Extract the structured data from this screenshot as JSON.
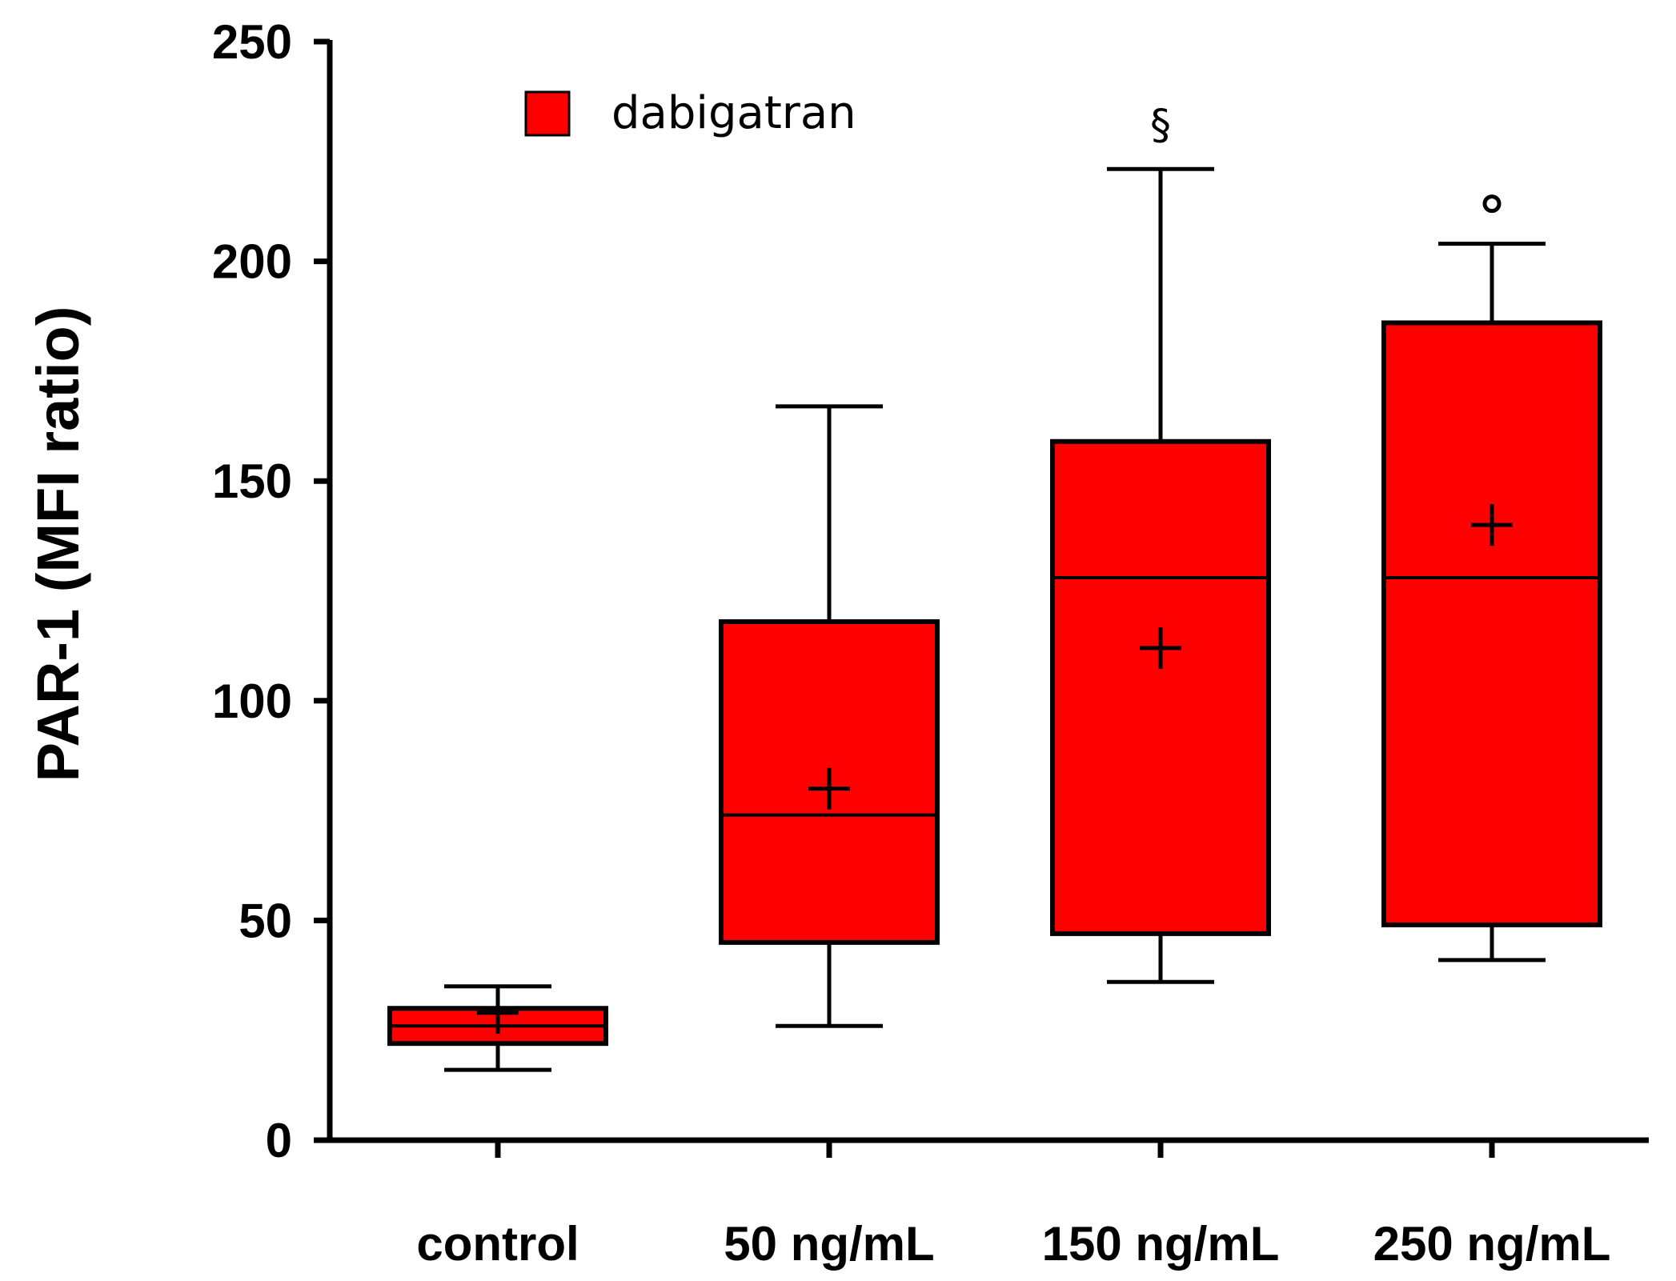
{
  "chart_data": {
    "type": "box",
    "title": "",
    "xlabel": "",
    "ylabel": "PAR-1 (MFI ratio)",
    "ylim": [
      0,
      250
    ],
    "yticks": [
      "0",
      "50",
      "100",
      "150",
      "200",
      "250"
    ],
    "categories": [
      "control",
      "50 ng/mL",
      "150 ng/mL",
      "250 ng/mL"
    ],
    "legend": {
      "label": "dabigatran",
      "color": "#ff0000",
      "position": "top-left"
    },
    "grid": false,
    "series": [
      {
        "name": "dabigatran",
        "color": "#ff0000",
        "boxes": [
          {
            "category": "control",
            "whisker_low": 16,
            "q1": 22,
            "median": 26,
            "q3": 30,
            "whisker_high": 35,
            "mean": 29,
            "annotation": ""
          },
          {
            "category": "50 ng/mL",
            "whisker_low": 26,
            "q1": 45,
            "median": 74,
            "q3": 118,
            "whisker_high": 167,
            "mean": 80,
            "annotation": ""
          },
          {
            "category": "150 ng/mL",
            "whisker_low": 36,
            "q1": 47,
            "median": 128,
            "q3": 159,
            "whisker_high": 221,
            "mean": 112,
            "annotation": "§"
          },
          {
            "category": "250 ng/mL",
            "whisker_low": 41,
            "q1": 49,
            "median": 128,
            "q3": 186,
            "whisker_high": 204,
            "mean": 140,
            "annotation": "°"
          }
        ]
      }
    ]
  }
}
